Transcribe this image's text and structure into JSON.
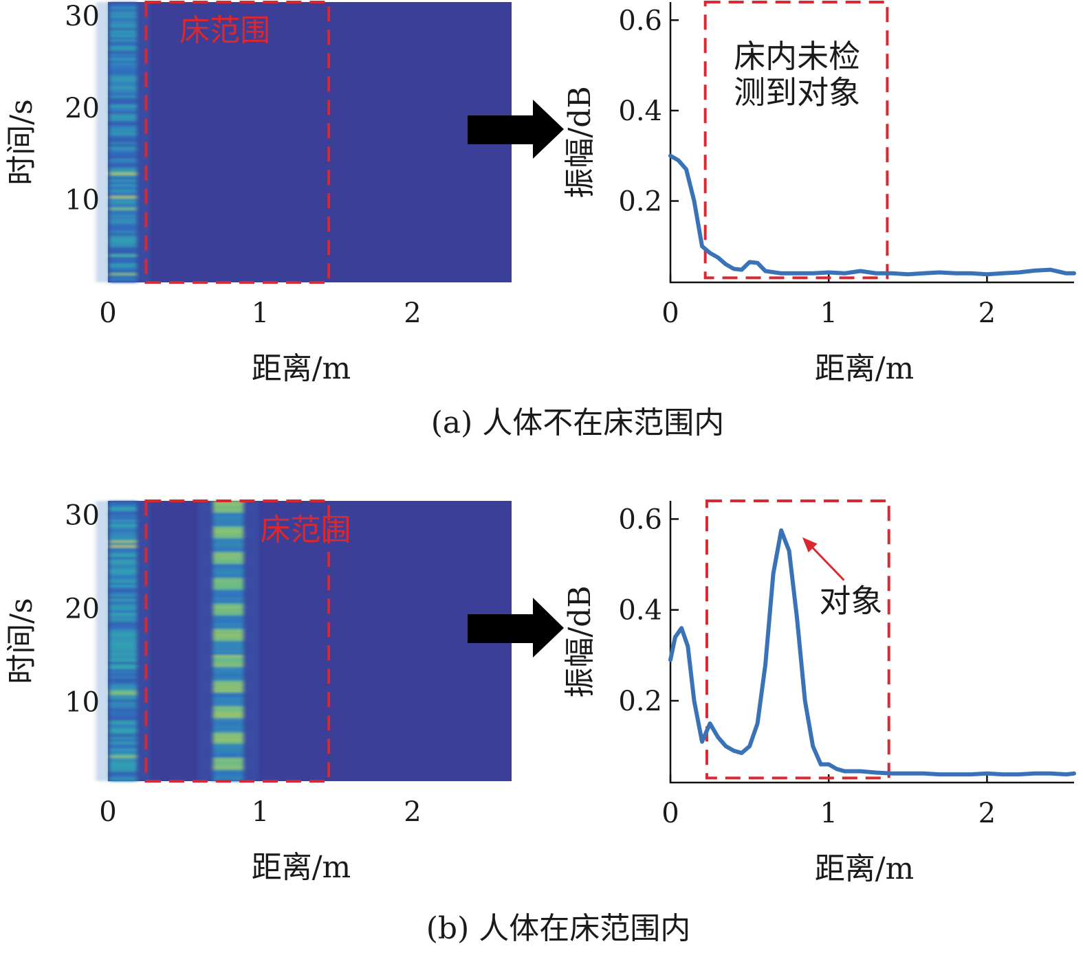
{
  "colors": {
    "heatmap_bg": "#3b3f98",
    "heatmap_mid": "#2f6fc0",
    "heatmap_hot": "#33c7a8",
    "heatmap_peak": "#d8e23c",
    "line": "#3a72b8",
    "box": "#d9282f",
    "arrow": "#000000"
  },
  "chart_data": [
    {
      "id": "a-heatmap",
      "type": "heatmap",
      "xlabel": "距离/m",
      "ylabel": "时间/s",
      "xlim": [
        0,
        2.65
      ],
      "ylim": [
        1,
        31.5
      ],
      "xticks": [
        "0",
        "1",
        "2"
      ],
      "yticks": [
        "10",
        "20",
        "30"
      ],
      "annotation_box": {
        "x": [
          0.25,
          1.45
        ],
        "y": [
          1,
          31.5
        ]
      },
      "annotations": [
        {
          "text": "床范围",
          "x": 0.47,
          "y": 28.5
        }
      ],
      "hot_columns": [
        {
          "x": 0.1,
          "width": 0.18,
          "strength": 0.65
        }
      ]
    },
    {
      "id": "a-line",
      "type": "line",
      "xlabel": "距离/m",
      "ylabel": "振幅/dB",
      "xlim": [
        0,
        2.55
      ],
      "ylim": [
        0.02,
        0.64
      ],
      "xticks": [
        "0",
        "1",
        "2"
      ],
      "yticks": [
        "0.2",
        "0.4",
        "0.6"
      ],
      "annotation_box": {
        "x": [
          0.22,
          1.37
        ],
        "y": [
          0.03,
          0.64
        ]
      },
      "annotations": [
        {
          "text": "床内未检",
          "x": 0.8,
          "y": 0.52
        },
        {
          "text": "测到对象",
          "x": 0.8,
          "y": 0.44
        }
      ],
      "series": [
        {
          "x": [
            0,
            0.05,
            0.1,
            0.15,
            0.2,
            0.25,
            0.3,
            0.35,
            0.4,
            0.45,
            0.5,
            0.55,
            0.6,
            0.7,
            0.8,
            0.9,
            1.0,
            1.1,
            1.2,
            1.3,
            1.4,
            1.5,
            1.6,
            1.7,
            1.8,
            1.9,
            2.0,
            2.1,
            2.2,
            2.3,
            2.4,
            2.5,
            2.55
          ],
          "y": [
            0.3,
            0.29,
            0.27,
            0.2,
            0.1,
            0.085,
            0.075,
            0.06,
            0.05,
            0.048,
            0.065,
            0.063,
            0.045,
            0.04,
            0.04,
            0.04,
            0.042,
            0.04,
            0.045,
            0.04,
            0.04,
            0.038,
            0.04,
            0.042,
            0.04,
            0.04,
            0.038,
            0.04,
            0.042,
            0.046,
            0.048,
            0.04,
            0.04
          ]
        }
      ]
    },
    {
      "id": "b-heatmap",
      "type": "heatmap",
      "xlabel": "距离/m",
      "ylabel": "时间/s",
      "xlim": [
        0,
        2.65
      ],
      "ylim": [
        1.5,
        31.5
      ],
      "xticks": [
        "0",
        "1",
        "2"
      ],
      "yticks": [
        "10",
        "20",
        "30"
      ],
      "annotation_box": {
        "x": [
          0.25,
          1.45
        ],
        "y": [
          1.5,
          31.5
        ]
      },
      "annotations": [
        {
          "text": "床范围",
          "x": 1.0,
          "y": 28.5
        }
      ],
      "hot_columns": [
        {
          "x": 0.1,
          "width": 0.18,
          "strength": 0.7
        },
        {
          "x": 0.79,
          "width": 0.2,
          "strength": 0.95
        }
      ]
    },
    {
      "id": "b-line",
      "type": "line",
      "xlabel": "距离/m",
      "ylabel": "振幅/dB",
      "xlim": [
        0,
        2.55
      ],
      "ylim": [
        0.02,
        0.64
      ],
      "xticks": [
        "0",
        "1",
        "2"
      ],
      "yticks": [
        "0.2",
        "0.4",
        "0.6"
      ],
      "annotation_box": {
        "x": [
          0.23,
          1.38
        ],
        "y": [
          0.03,
          0.64
        ]
      },
      "annotations": [
        {
          "text": "对象",
          "x": 1.14,
          "y": 0.42,
          "arrow_to": [
            0.79,
            0.575
          ]
        }
      ],
      "series": [
        {
          "x": [
            0,
            0.03,
            0.07,
            0.11,
            0.15,
            0.2,
            0.25,
            0.3,
            0.35,
            0.4,
            0.45,
            0.5,
            0.55,
            0.6,
            0.65,
            0.7,
            0.75,
            0.8,
            0.85,
            0.9,
            0.95,
            1.0,
            1.05,
            1.1,
            1.2,
            1.3,
            1.4,
            1.5,
            1.6,
            1.7,
            1.8,
            1.9,
            2.0,
            2.1,
            2.2,
            2.3,
            2.4,
            2.5,
            2.55
          ],
          "y": [
            0.29,
            0.34,
            0.36,
            0.32,
            0.2,
            0.11,
            0.15,
            0.12,
            0.1,
            0.09,
            0.085,
            0.1,
            0.15,
            0.28,
            0.48,
            0.575,
            0.53,
            0.38,
            0.2,
            0.1,
            0.06,
            0.06,
            0.05,
            0.045,
            0.045,
            0.042,
            0.04,
            0.04,
            0.04,
            0.038,
            0.038,
            0.038,
            0.04,
            0.038,
            0.038,
            0.04,
            0.04,
            0.038,
            0.04
          ]
        }
      ]
    }
  ],
  "captions": {
    "a": "(a)  人体不在床范围内",
    "b": "(b)  人体在床范围内"
  }
}
